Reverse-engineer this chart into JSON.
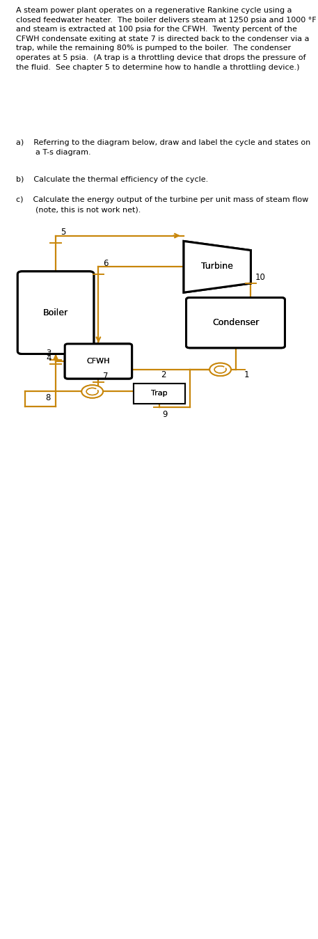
{
  "line_color": "#c8860a",
  "box_color": "#000000",
  "bg_color": "#ffffff",
  "text_color": "#000000",
  "title_text": "A steam power plant operates on a regenerative Rankine cycle using a closed feedwater heater.  The boiler delivers steam at 1250 psia and 1000 °F and steam is extracted at 100 psia for the CFWH.  Twenty percent of the CFWH condensate exiting at state 7 is directed back to the condenser via a trap, while the remaining 80% is pumped to the boiler.  The condenser operates at 5 psia.  (A trap is a throttling device that drops the pressure of the fluid.  See chapter 5 to determine how to handle a throttling device.)",
  "q_a": "a)    Referring to the diagram below, draw and label the cycle and states on\n        a T-s diagram.",
  "q_b": "b)    Calculate the thermal efficiency of the cycle.",
  "q_c": "c)    Calculate the energy output of the turbine per unit mass of steam flow\n        (note, this is not work net)."
}
